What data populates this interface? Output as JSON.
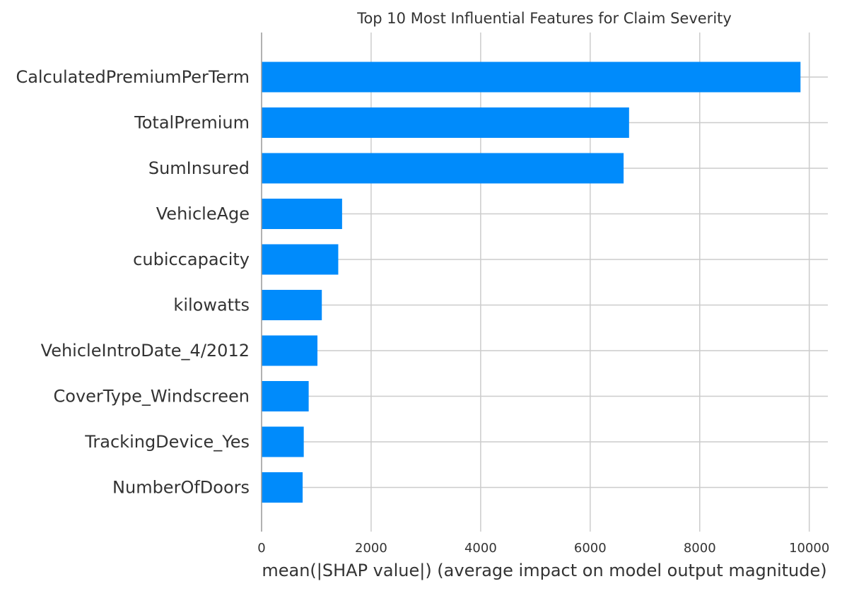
{
  "chart_data": {
    "type": "bar",
    "orientation": "horizontal",
    "title": "Top 10 Most Influential Features for Claim Severity",
    "xlabel": "mean(|SHAP value|) (average impact on model output magnitude)",
    "ylabel": "",
    "categories": [
      "CalculatedPremiumPerTerm",
      "TotalPremium",
      "SumInsured",
      "VehicleAge",
      "cubiccapacity",
      "kilowatts",
      "VehicleIntroDate_4/2012",
      "CoverType_Windscreen",
      "TrackingDevice_Yes",
      "NumberOfDoors"
    ],
    "values": [
      9840,
      6710,
      6610,
      1470,
      1400,
      1100,
      1020,
      860,
      770,
      750
    ],
    "xlim": [
      0,
      10400
    ],
    "xticks": [
      "0",
      "2000",
      "4000",
      "6000",
      "8000",
      "10000"
    ],
    "grid": true,
    "bar_color": "#008bfb",
    "grid_color": "#cccccc",
    "axis_color": "#999999"
  }
}
